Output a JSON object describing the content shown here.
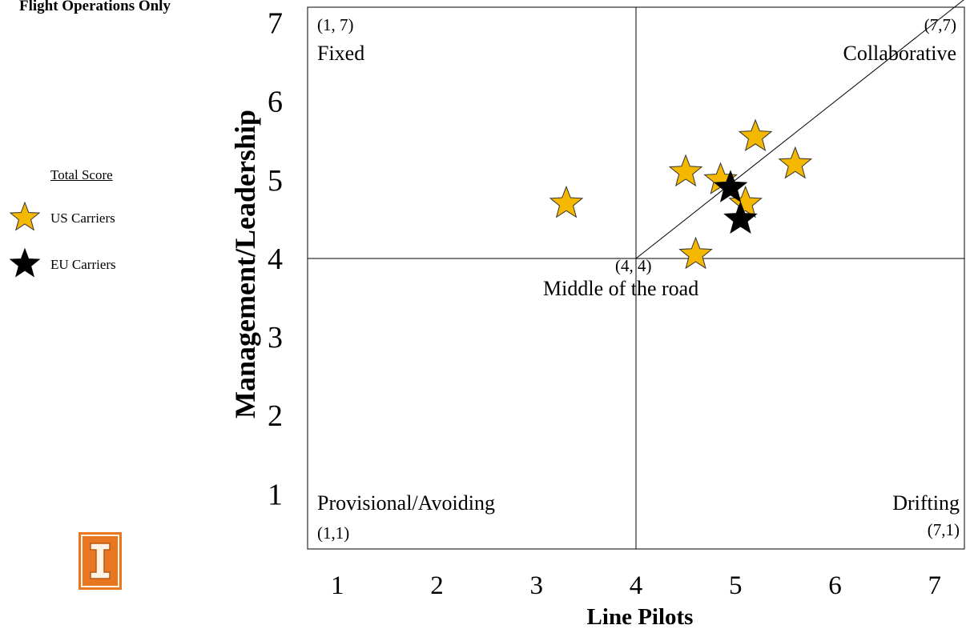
{
  "header": {
    "title": "Flight Operations Only"
  },
  "legend": {
    "title": "Total Score",
    "items": [
      {
        "label": "US Carriers",
        "color": "#F5B800",
        "icon": "star-icon"
      },
      {
        "label": "EU Carriers",
        "color": "#000000",
        "icon": "star-icon"
      }
    ]
  },
  "logo": {
    "icon": "university-block-i-icon",
    "color": "#E87722"
  },
  "chart_data": {
    "type": "scatter",
    "xlabel": "Line Pilots",
    "ylabel": "Management/Leadership",
    "xlim": [
      0.7,
      7.3
    ],
    "ylim": [
      0.3,
      7.2
    ],
    "xticks": [
      1,
      2,
      3,
      4,
      5,
      6,
      7
    ],
    "yticks": [
      1,
      2,
      3,
      4,
      5,
      6,
      7
    ],
    "grid": false,
    "legend_position": "left",
    "reference_lines": [
      {
        "orientation": "vertical",
        "value": 4
      },
      {
        "orientation": "horizontal",
        "value": 4
      },
      {
        "orientation": "diagonal",
        "from": [
          4,
          4
        ],
        "to": [
          7.3,
          7.3
        ]
      }
    ],
    "quadrants": [
      {
        "name": "Fixed",
        "coord": "(1, 7)",
        "position": "top-left"
      },
      {
        "name": "Collaborative",
        "coord": "(7,7)",
        "position": "top-right"
      },
      {
        "name": "Middle of the road",
        "coord": "(4, 4)",
        "position": "center"
      },
      {
        "name": "Provisional/Avoiding",
        "coord": "(1,1)",
        "position": "bottom-left"
      },
      {
        "name": "Drifting",
        "coord": "(7,1)",
        "position": "bottom-right"
      }
    ],
    "series": [
      {
        "name": "US Carriers",
        "color": "#F5B800",
        "marker": "star",
        "points": [
          {
            "x": 3.3,
            "y": 4.7
          },
          {
            "x": 4.5,
            "y": 5.1
          },
          {
            "x": 4.6,
            "y": 4.05
          },
          {
            "x": 4.85,
            "y": 5.0
          },
          {
            "x": 5.1,
            "y": 4.7
          },
          {
            "x": 5.2,
            "y": 5.55
          },
          {
            "x": 5.6,
            "y": 5.2
          }
        ]
      },
      {
        "name": "EU Carriers",
        "color": "#000000",
        "marker": "star",
        "points": [
          {
            "x": 4.95,
            "y": 4.9
          },
          {
            "x": 5.05,
            "y": 4.5
          }
        ]
      }
    ]
  }
}
